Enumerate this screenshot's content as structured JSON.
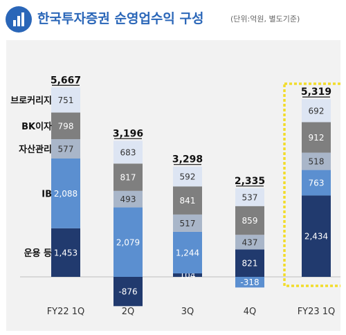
{
  "title": "한국투자증권 순영업수익 구성",
  "unit_note": "(단위:억원, 별도기준)",
  "colors": {
    "title": "#2a66b8",
    "운용 등": "#213a6e",
    "IB": "#5b8fd0",
    "자산관리": "#a9b6c9",
    "BK이자": "#7f7f7f",
    "브로커리지": "#dde5f3",
    "highlight": "#f2dc2a"
  },
  "chart_data": {
    "type": "bar",
    "stacked": true,
    "categories": [
      "FY22 1Q",
      "2Q",
      "3Q",
      "4Q",
      "FY23 1Q"
    ],
    "series": [
      {
        "name": "운용 등",
        "values": [
          1453,
          -876,
          104,
          821,
          2434
        ]
      },
      {
        "name": "IB",
        "values": [
          2088,
          2079,
          1244,
          -318,
          763
        ]
      },
      {
        "name": "자산관리",
        "values": [
          577,
          493,
          517,
          437,
          518
        ]
      },
      {
        "name": "BK이자",
        "values": [
          798,
          817,
          841,
          859,
          912
        ]
      },
      {
        "name": "브로커리지",
        "values": [
          751,
          683,
          592,
          537,
          692
        ]
      }
    ],
    "totals": [
      "5,667",
      "3,196",
      "3,298",
      "2,335",
      "5,319"
    ],
    "data_labels": [
      [
        "1,453",
        "-876",
        "104",
        "821",
        "2,434"
      ],
      [
        "2,088",
        "2,079",
        "1,244",
        "-318",
        "763"
      ],
      [
        "577",
        "493",
        "517",
        "437",
        "518"
      ],
      [
        "798",
        "817",
        "841",
        "859",
        "912"
      ],
      [
        "751",
        "683",
        "592",
        "537",
        "692"
      ]
    ],
    "highlight_category": "FY23 1Q",
    "legend": "left",
    "grid": false
  }
}
